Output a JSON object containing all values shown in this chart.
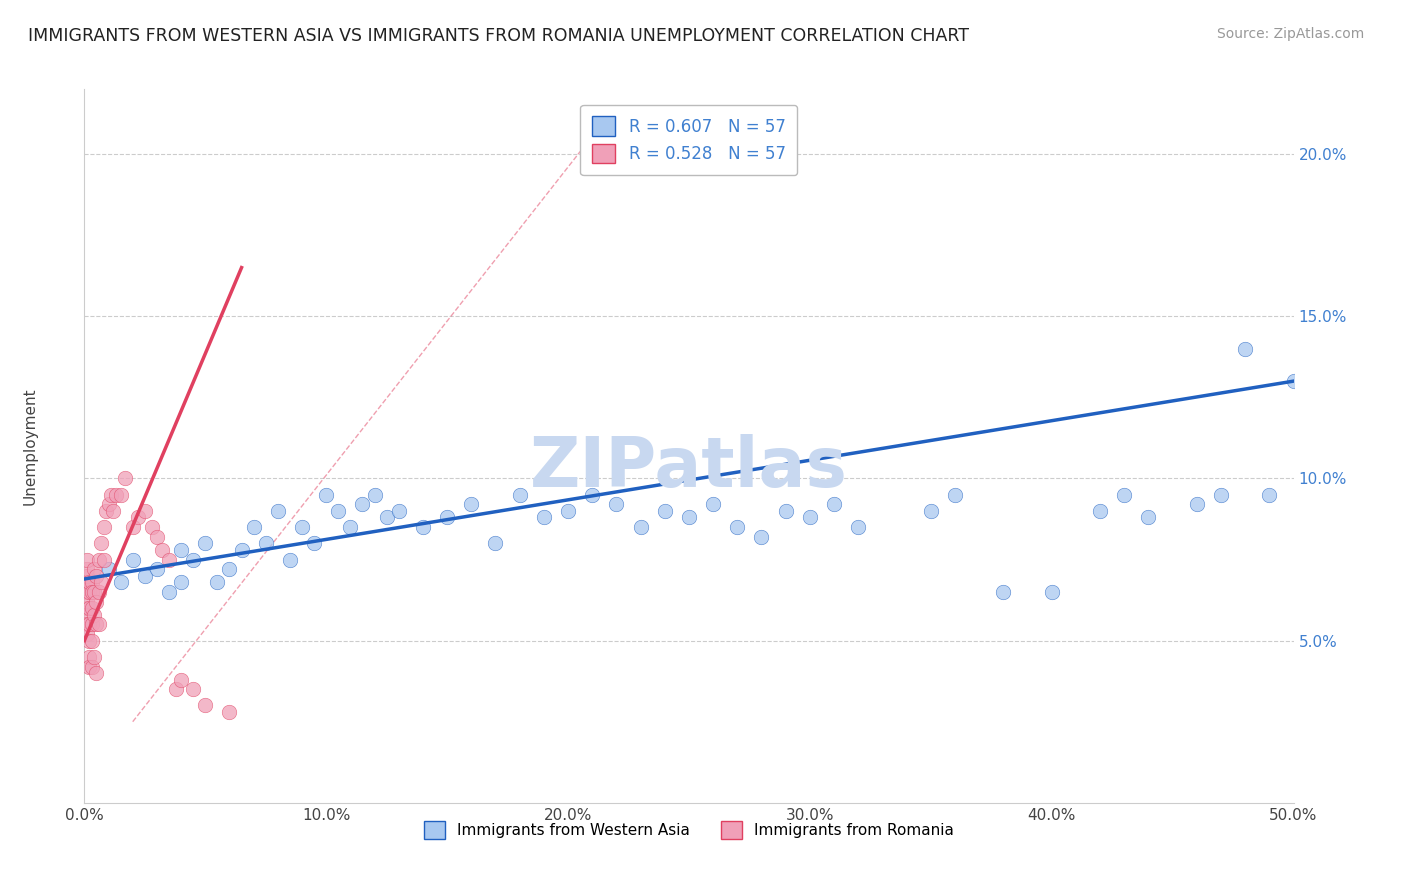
{
  "title": "IMMIGRANTS FROM WESTERN ASIA VS IMMIGRANTS FROM ROMANIA UNEMPLOYMENT CORRELATION CHART",
  "source": "Source: ZipAtlas.com",
  "ylabel": "Unemployment",
  "legend_label_blue": "Immigrants from Western Asia",
  "legend_label_pink": "Immigrants from Romania",
  "R_blue": 0.607,
  "N_blue": 57,
  "R_pink": 0.528,
  "N_pink": 57,
  "xlim": [
    0,
    0.5
  ],
  "ylim": [
    0.0,
    0.22
  ],
  "yticks": [
    0.05,
    0.1,
    0.15,
    0.2
  ],
  "ytick_labels": [
    "5.0%",
    "10.0%",
    "15.0%",
    "20.0%"
  ],
  "xticks": [
    0.0,
    0.1,
    0.2,
    0.3,
    0.4,
    0.5
  ],
  "xtick_labels": [
    "0.0%",
    "10.0%",
    "20.0%",
    "30.0%",
    "40.0%",
    "50.0%"
  ],
  "color_blue": "#a8c8f0",
  "color_pink": "#f0a0b8",
  "line_color_blue": "#2060c0",
  "line_color_pink": "#e04060",
  "tick_color_blue": "#4080d0",
  "watermark": "ZIPatlas",
  "watermark_color": "#c8d8f0",
  "blue_scatter_x": [
    0.01,
    0.015,
    0.02,
    0.025,
    0.03,
    0.035,
    0.04,
    0.04,
    0.045,
    0.05,
    0.055,
    0.06,
    0.065,
    0.07,
    0.075,
    0.08,
    0.085,
    0.09,
    0.095,
    0.1,
    0.105,
    0.11,
    0.115,
    0.12,
    0.125,
    0.13,
    0.14,
    0.15,
    0.16,
    0.17,
    0.18,
    0.19,
    0.2,
    0.21,
    0.22,
    0.23,
    0.24,
    0.25,
    0.26,
    0.27,
    0.28,
    0.29,
    0.3,
    0.31,
    0.32,
    0.35,
    0.36,
    0.38,
    0.4,
    0.42,
    0.43,
    0.44,
    0.46,
    0.47,
    0.48,
    0.49,
    0.5
  ],
  "blue_scatter_y": [
    0.072,
    0.068,
    0.075,
    0.07,
    0.072,
    0.065,
    0.068,
    0.078,
    0.075,
    0.08,
    0.068,
    0.072,
    0.078,
    0.085,
    0.08,
    0.09,
    0.075,
    0.085,
    0.08,
    0.095,
    0.09,
    0.085,
    0.092,
    0.095,
    0.088,
    0.09,
    0.085,
    0.088,
    0.092,
    0.08,
    0.095,
    0.088,
    0.09,
    0.095,
    0.092,
    0.085,
    0.09,
    0.088,
    0.092,
    0.085,
    0.082,
    0.09,
    0.088,
    0.092,
    0.085,
    0.09,
    0.095,
    0.065,
    0.065,
    0.09,
    0.095,
    0.088,
    0.092,
    0.095,
    0.14,
    0.095,
    0.13
  ],
  "pink_scatter_x": [
    0.001,
    0.001,
    0.001,
    0.001,
    0.001,
    0.001,
    0.001,
    0.001,
    0.001,
    0.001,
    0.002,
    0.002,
    0.002,
    0.002,
    0.002,
    0.002,
    0.002,
    0.003,
    0.003,
    0.003,
    0.003,
    0.003,
    0.003,
    0.004,
    0.004,
    0.004,
    0.004,
    0.005,
    0.005,
    0.005,
    0.005,
    0.006,
    0.006,
    0.006,
    0.007,
    0.007,
    0.008,
    0.008,
    0.009,
    0.01,
    0.011,
    0.012,
    0.013,
    0.015,
    0.017,
    0.02,
    0.022,
    0.025,
    0.028,
    0.03,
    0.032,
    0.035,
    0.038,
    0.04,
    0.045,
    0.05,
    0.06
  ],
  "pink_scatter_y": [
    0.065,
    0.068,
    0.07,
    0.072,
    0.075,
    0.06,
    0.062,
    0.058,
    0.055,
    0.052,
    0.065,
    0.068,
    0.06,
    0.055,
    0.05,
    0.045,
    0.042,
    0.068,
    0.065,
    0.06,
    0.055,
    0.05,
    0.042,
    0.072,
    0.065,
    0.058,
    0.045,
    0.07,
    0.062,
    0.055,
    0.04,
    0.075,
    0.065,
    0.055,
    0.08,
    0.068,
    0.085,
    0.075,
    0.09,
    0.092,
    0.095,
    0.09,
    0.095,
    0.095,
    0.1,
    0.085,
    0.088,
    0.09,
    0.085,
    0.082,
    0.078,
    0.075,
    0.035,
    0.038,
    0.035,
    0.03,
    0.028
  ],
  "blue_line_x": [
    0.0,
    0.5
  ],
  "blue_line_y": [
    0.069,
    0.13
  ],
  "pink_line_x": [
    0.0,
    0.065
  ],
  "pink_line_y": [
    0.05,
    0.165
  ],
  "diag_line_x": [
    0.02,
    0.22
  ],
  "diag_line_y": [
    0.025,
    0.215
  ]
}
